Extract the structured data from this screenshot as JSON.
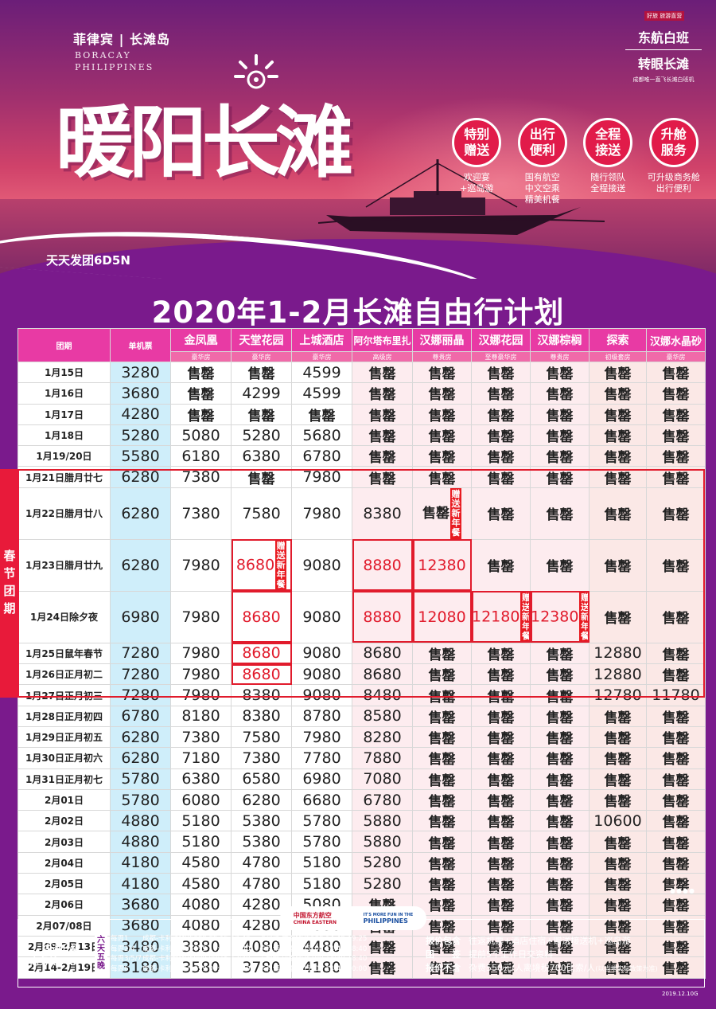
{
  "hero": {
    "brand": "菲律宾 | 长滩岛",
    "brand_en_1": "BORACAY",
    "brand_en_2": "PHILIPPINES",
    "title": "暖阳长滩",
    "daily": "天天发团6D5N",
    "corner_tag": "好旅 旅游直营",
    "corner_line1": "东航白班",
    "corner_line2": "转眼长滩",
    "corner_note": "成都唯一直飞长滩白班机",
    "features": [
      {
        "label_1": "特别",
        "label_2": "赠送",
        "desc_1": "欢迎宴",
        "desc_2": "+巡岛游",
        "desc_3": ""
      },
      {
        "label_1": "出行",
        "label_2": "便利",
        "desc_1": "国有航空",
        "desc_2": "中文空乘",
        "desc_3": "精美机餐"
      },
      {
        "label_1": "全程",
        "label_2": "接送",
        "desc_1": "随行领队",
        "desc_2": "全程接送",
        "desc_3": ""
      },
      {
        "label_1": "升舱",
        "label_2": "服务",
        "desc_1": "可升级商务舱",
        "desc_2": "出行便利",
        "desc_3": ""
      }
    ]
  },
  "main_title": "2020年1-2月长滩自由行计划",
  "table": {
    "col_date": "团期",
    "col_single": "单机票",
    "hotels": [
      {
        "name": "金凤凰",
        "room": "豪华房"
      },
      {
        "name": "天堂花园",
        "room": "豪华房"
      },
      {
        "name": "上城酒店",
        "room": "豪华房"
      },
      {
        "name": "阿尔塔布里扎",
        "room": "高级房"
      },
      {
        "name": "汉娜丽晶",
        "room": "尊贵房"
      },
      {
        "name": "汉娜花园",
        "room": "至尊豪华房"
      },
      {
        "name": "汉娜棕榈",
        "room": "尊贵房"
      },
      {
        "name": "探索",
        "room": "初级套房"
      },
      {
        "name": "汉娜水晶砂",
        "room": "豪华房"
      }
    ],
    "gift_text": "赠送新年餐",
    "rows": [
      {
        "date": "1月15日",
        "cells": [
          "3280",
          "售罄",
          "售罄",
          "4599",
          "售罄",
          "售罄",
          "售罄",
          "售罄",
          "售罄",
          "售罄"
        ]
      },
      {
        "date": "1月16日",
        "cells": [
          "3680",
          "售罄",
          "4299",
          "4599",
          "售罄",
          "售罄",
          "售罄",
          "售罄",
          "售罄",
          "售罄"
        ]
      },
      {
        "date": "1月17日",
        "cells": [
          "4280",
          "售罄",
          "售罄",
          "售罄",
          "售罄",
          "售罄",
          "售罄",
          "售罄",
          "售罄",
          "售罄"
        ]
      },
      {
        "date": "1月18日",
        "cells": [
          "5280",
          "5080",
          "5280",
          "5680",
          "售罄",
          "售罄",
          "售罄",
          "售罄",
          "售罄",
          "售罄"
        ]
      },
      {
        "date": "1月19/20日",
        "cells": [
          "5580",
          "6180",
          "6380",
          "6780",
          "售罄",
          "售罄",
          "售罄",
          "售罄",
          "售罄",
          "售罄"
        ]
      },
      {
        "date": "1月21日腊月廿七",
        "cells": [
          "6280",
          "7380",
          "售罄",
          "7980",
          "售罄",
          "售罄",
          "售罄",
          "售罄",
          "售罄",
          "售罄"
        ]
      },
      {
        "date": "1月22日腊月廿八",
        "cells": [
          "6280",
          "7380",
          "7580",
          "7980",
          "8380",
          "售罄",
          "售罄",
          "售罄",
          "售罄",
          "售罄"
        ]
      },
      {
        "date": "1月23日腊月廿九",
        "cells": [
          "6280",
          "7980",
          "8680",
          "9080",
          "8880",
          "12380",
          "售罄",
          "售罄",
          "售罄",
          "售罄"
        ]
      },
      {
        "date": "1月24日除夕夜",
        "cells": [
          "6980",
          "7980",
          "8680",
          "9080",
          "8880",
          "12080",
          "12180",
          "12380",
          "售罄",
          "售罄"
        ]
      },
      {
        "date": "1月25日鼠年春节",
        "cells": [
          "7280",
          "7980",
          "8680",
          "9080",
          "8680",
          "售罄",
          "售罄",
          "售罄",
          "12880",
          "售罄"
        ]
      },
      {
        "date": "1月26日正月初二",
        "cells": [
          "7280",
          "7980",
          "8680",
          "9080",
          "8680",
          "售罄",
          "售罄",
          "售罄",
          "12880",
          "售罄"
        ]
      },
      {
        "date": "1月27日正月初三",
        "cells": [
          "7280",
          "7980",
          "8380",
          "9080",
          "8480",
          "售罄",
          "售罄",
          "售罄",
          "12780",
          "11780"
        ]
      },
      {
        "date": "1月28日正月初四",
        "cells": [
          "6780",
          "8180",
          "8380",
          "8780",
          "8580",
          "售罄",
          "售罄",
          "售罄",
          "售罄",
          "售罄"
        ]
      },
      {
        "date": "1月29日正月初五",
        "cells": [
          "6280",
          "7380",
          "7580",
          "7980",
          "8280",
          "售罄",
          "售罄",
          "售罄",
          "售罄",
          "售罄"
        ]
      },
      {
        "date": "1月30日正月初六",
        "cells": [
          "6280",
          "7180",
          "7380",
          "7780",
          "7880",
          "售罄",
          "售罄",
          "售罄",
          "售罄",
          "售罄"
        ]
      },
      {
        "date": "1月31日正月初七",
        "cells": [
          "5780",
          "6380",
          "6580",
          "6980",
          "7080",
          "售罄",
          "售罄",
          "售罄",
          "售罄",
          "售罄"
        ]
      },
      {
        "date": "2月01日",
        "cells": [
          "5780",
          "6080",
          "6280",
          "6680",
          "6780",
          "售罄",
          "售罄",
          "售罄",
          "售罄",
          "售罄"
        ]
      },
      {
        "date": "2月02日",
        "cells": [
          "4880",
          "5180",
          "5380",
          "5780",
          "5880",
          "售罄",
          "售罄",
          "售罄",
          "10600",
          "售罄"
        ]
      },
      {
        "date": "2月03日",
        "cells": [
          "4880",
          "5180",
          "5380",
          "5780",
          "5880",
          "售罄",
          "售罄",
          "售罄",
          "售罄",
          "售罄"
        ]
      },
      {
        "date": "2月04日",
        "cells": [
          "4180",
          "4580",
          "4780",
          "5180",
          "5280",
          "售罄",
          "售罄",
          "售罄",
          "售罄",
          "售罄"
        ]
      },
      {
        "date": "2月05日",
        "cells": [
          "4180",
          "4580",
          "4780",
          "5180",
          "5280",
          "售罄",
          "售罄",
          "售罄",
          "售罄",
          "售罄"
        ]
      },
      {
        "date": "2月06日",
        "cells": [
          "3680",
          "4080",
          "4280",
          "5080",
          "售罄",
          "售罄",
          "售罄",
          "售罄",
          "售罄",
          "售罄"
        ]
      },
      {
        "date": "2月07/08日",
        "cells": [
          "3680",
          "4080",
          "4280",
          "4680",
          "售罄",
          "售罄",
          "售罄",
          "售罄",
          "售罄",
          "售罄"
        ]
      },
      {
        "date": "2月09-2月13日",
        "cells": [
          "3480",
          "3880",
          "4080",
          "4480",
          "售罄",
          "售罄",
          "售罄",
          "售罄",
          "售罄",
          "售罄"
        ]
      },
      {
        "date": "2月14-2月19日",
        "cells": [
          "3180",
          "3580",
          "3780",
          "4180",
          "售罄",
          "售罄",
          "售罄",
          "售罄",
          "售罄",
          "售罄"
        ]
      }
    ]
  },
  "spring_band": "春节团期",
  "footer": {
    "logo_1": "中国东方航空",
    "logo_1_en": "CHINA EASTERN",
    "logo_2": "IT'S MORE FUN IN THE",
    "logo_2b": "PHILIPPINES",
    "upgrade_1": "往返升级",
    "upgrade_2": "商务舱+1500",
    "badge": "六天五晚",
    "flights": [
      {
        "day": "每周1",
        "route": "成都-卡利博MU5099 09:15-13:40， 卡利博-成都MU5100 14:40-19:25"
      },
      {
        "day": "每周2/4",
        "route": "成都-卡利博MU5099 10:00-13:40， 卡利博-成都MU5100 14:40-18:40"
      },
      {
        "day": "每周3/5/7",
        "route": "成都-卡利博MU5099 09:15-13:40， 卡利博-成都MU5100 14:40-18:40"
      },
      {
        "day": "每周6",
        "route": "成都-卡利博MU5099 09:15-13:40， 卡利博-成都MU5100 14:40-20:00"
      }
    ],
    "info": [
      {
        "label": "报价包含",
        "text": "往返机票+酒店住宿+赠送接送机+巡岛游",
        "note": ""
      },
      {
        "label": "团　　签",
        "text": "提前5个工作日交资料",
        "note": ""
      },
      {
        "label": "报价不含",
        "text": "杂费550元/人离境税700比索/人",
        "note": "(以当地实际政策为准)"
      }
    ],
    "date_code": "2019.12.10G"
  },
  "colors": {
    "background": "#7a1a8c",
    "header_pink": "#e83aa4",
    "single_ticket_col": "#cfeefa",
    "accent_red": "#e11b2c"
  }
}
